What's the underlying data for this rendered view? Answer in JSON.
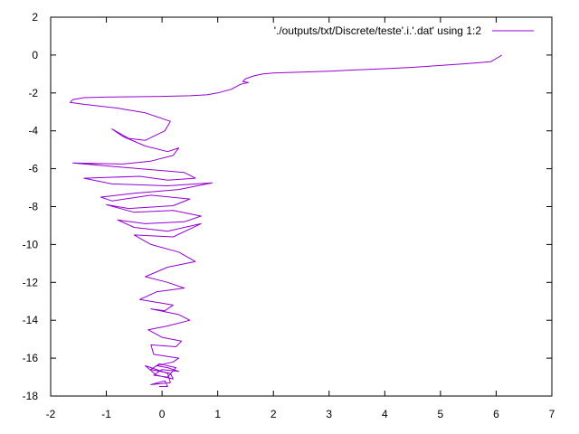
{
  "chart_data": {
    "type": "line",
    "xlim": [
      -2,
      7
    ],
    "ylim": [
      -18,
      2
    ],
    "x_ticks": [
      "-2",
      "-1",
      "0",
      "1",
      "2",
      "3",
      "4",
      "5",
      "6",
      "7"
    ],
    "y_ticks": [
      "2",
      "0",
      "-2",
      "-4",
      "-6",
      "-8",
      "-10",
      "-12",
      "-14",
      "-16",
      "-18"
    ],
    "grid": false,
    "legend_position": "top-right",
    "series": [
      {
        "name": "'./outputs/txt/Discrete/teste'.i.'.dat' using 1:2",
        "color": "#9400d3",
        "x": [
          6.1,
          6.05,
          5.9,
          5.5,
          5.0,
          4.5,
          4.0,
          3.5,
          3.0,
          2.5,
          2.0,
          1.8,
          1.65,
          1.5,
          1.45,
          1.55,
          1.4,
          1.25,
          1.0,
          0.8,
          0.5,
          0.0,
          -0.5,
          -1.0,
          -1.4,
          -1.6,
          -1.65,
          -1.4,
          -0.8,
          -0.3,
          0.15,
          0.05,
          -0.3,
          -0.6,
          -0.9,
          -0.7,
          -0.3,
          0.1,
          0.3,
          0.2,
          -0.2,
          -0.7,
          -1.6,
          -0.8,
          0.4,
          0.6,
          0.1,
          -0.4,
          -1.4,
          -0.9,
          0.1,
          0.9,
          0.3,
          -0.5,
          -1.1,
          -0.9,
          -0.2,
          0.5,
          0.2,
          -0.6,
          -1.0,
          -0.5,
          0.2,
          0.7,
          0.4,
          -0.3,
          -0.8,
          -0.5,
          0.1,
          0.7,
          0.2,
          -0.5,
          -0.2,
          0.3,
          0.6,
          0.1,
          -0.3,
          0.1,
          0.4,
          -0.1,
          -0.4,
          0.2,
          0.05,
          -0.2,
          0.3,
          0.5,
          0.1,
          -0.25,
          0.0,
          0.35,
          0.25,
          -0.2,
          -0.15,
          0.3,
          0.2,
          -0.1,
          0.1,
          0.3,
          0.0,
          -0.15,
          0.1,
          0.25,
          -0.05,
          -0.2,
          0.15,
          0.2,
          -0.1,
          -0.3,
          0.1,
          0.15,
          -0.2,
          0.05,
          0.1,
          -0.05
        ],
        "y": [
          0.0,
          -0.1,
          -0.35,
          -0.45,
          -0.55,
          -0.65,
          -0.72,
          -0.78,
          -0.85,
          -0.9,
          -0.95,
          -1.0,
          -1.1,
          -1.25,
          -1.4,
          -1.45,
          -1.55,
          -1.8,
          -2.0,
          -2.1,
          -2.15,
          -2.18,
          -2.2,
          -2.22,
          -2.25,
          -2.35,
          -2.5,
          -2.6,
          -2.8,
          -3.05,
          -3.5,
          -4.0,
          -4.5,
          -4.4,
          -3.9,
          -4.3,
          -4.8,
          -5.1,
          -4.9,
          -5.3,
          -5.6,
          -5.75,
          -5.7,
          -5.9,
          -6.2,
          -6.5,
          -6.6,
          -6.4,
          -6.5,
          -6.8,
          -6.9,
          -6.75,
          -7.1,
          -7.3,
          -7.5,
          -7.7,
          -7.4,
          -7.6,
          -7.95,
          -8.1,
          -7.9,
          -8.3,
          -8.2,
          -8.5,
          -8.8,
          -8.9,
          -8.7,
          -9.1,
          -9.3,
          -8.9,
          -9.6,
          -9.5,
          -10.0,
          -10.4,
          -10.9,
          -11.2,
          -11.7,
          -12.0,
          -12.3,
          -12.5,
          -12.9,
          -13.2,
          -13.5,
          -13.4,
          -13.7,
          -14.0,
          -14.3,
          -14.5,
          -14.9,
          -15.1,
          -15.4,
          -15.3,
          -15.8,
          -16.0,
          -16.2,
          -16.4,
          -16.5,
          -16.7,
          -16.6,
          -16.9,
          -17.0,
          -16.5,
          -16.3,
          -16.6,
          -16.8,
          -17.1,
          -16.9,
          -16.4,
          -16.8,
          -17.3,
          -17.4,
          -17.2,
          -17.5,
          -17.5
        ]
      }
    ]
  }
}
